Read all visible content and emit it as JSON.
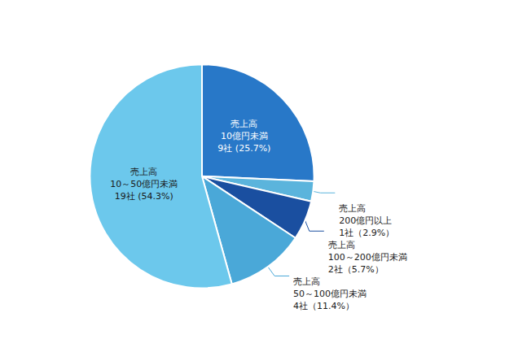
{
  "chart_data": {
    "type": "pie",
    "values": [
      25.7,
      2.9,
      5.7,
      11.4,
      54.3
    ],
    "value_labels": [
      "売上高\n10億円未満\n9社 (25.7%)",
      "売上高\n200億円以上\n1社（2.9%）",
      "売上高\n100～200億円未満\n2社（5.7%）",
      "売上高\n50～100億円未満\n4社（11.4%）",
      "売上高\n10～50億円未満\n19社 (54.3%)"
    ],
    "colors": [
      "#2878C8",
      "#5BB4DC",
      "#1A4FA0",
      "#4AA8D8",
      "#6CC8EC"
    ],
    "data_labels": true
  }
}
